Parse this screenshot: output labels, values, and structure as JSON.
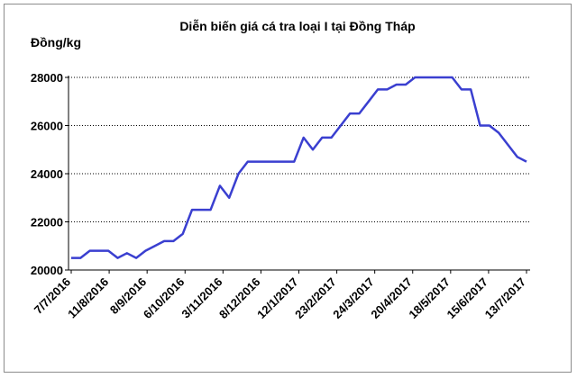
{
  "chart_data": {
    "type": "line",
    "title": "Diễn biến giá cá tra loại I tại Đồng Tháp",
    "ylabel": "Đồng/kg",
    "xlabel": "",
    "ylim": [
      20000,
      28000
    ],
    "yticks": [
      20000,
      22000,
      24000,
      26000,
      28000
    ],
    "grid": true,
    "x_tick_labels": [
      "7/7/2016",
      "11/8/2016",
      "8/9/2016",
      "6/10/2016",
      "3/11/2016",
      "8/12/2016",
      "12/1/2017",
      "23/2/2017",
      "24/3/2017",
      "20/4/2017",
      "18/5/2017",
      "15/6/2017",
      "13/7/2017"
    ],
    "x_tick_indices": [
      0,
      5,
      10,
      15,
      20,
      25,
      30,
      35,
      40,
      45,
      50,
      55,
      60
    ],
    "series": [
      {
        "name": "",
        "color": "#3a3fd0",
        "values": [
          20500,
          20500,
          20800,
          20800,
          20800,
          20500,
          20700,
          20500,
          20800,
          21000,
          21200,
          21200,
          21500,
          22500,
          22500,
          22500,
          23500,
          23000,
          24000,
          24500,
          24500,
          24500,
          24500,
          24500,
          24500,
          25500,
          25000,
          25500,
          25500,
          26000,
          26500,
          26500,
          27000,
          27500,
          27500,
          27700,
          27700,
          28000,
          28000,
          28000,
          28000,
          28000,
          27500,
          27500,
          26000,
          26000,
          25700,
          25200,
          24700,
          24500
        ]
      }
    ]
  }
}
